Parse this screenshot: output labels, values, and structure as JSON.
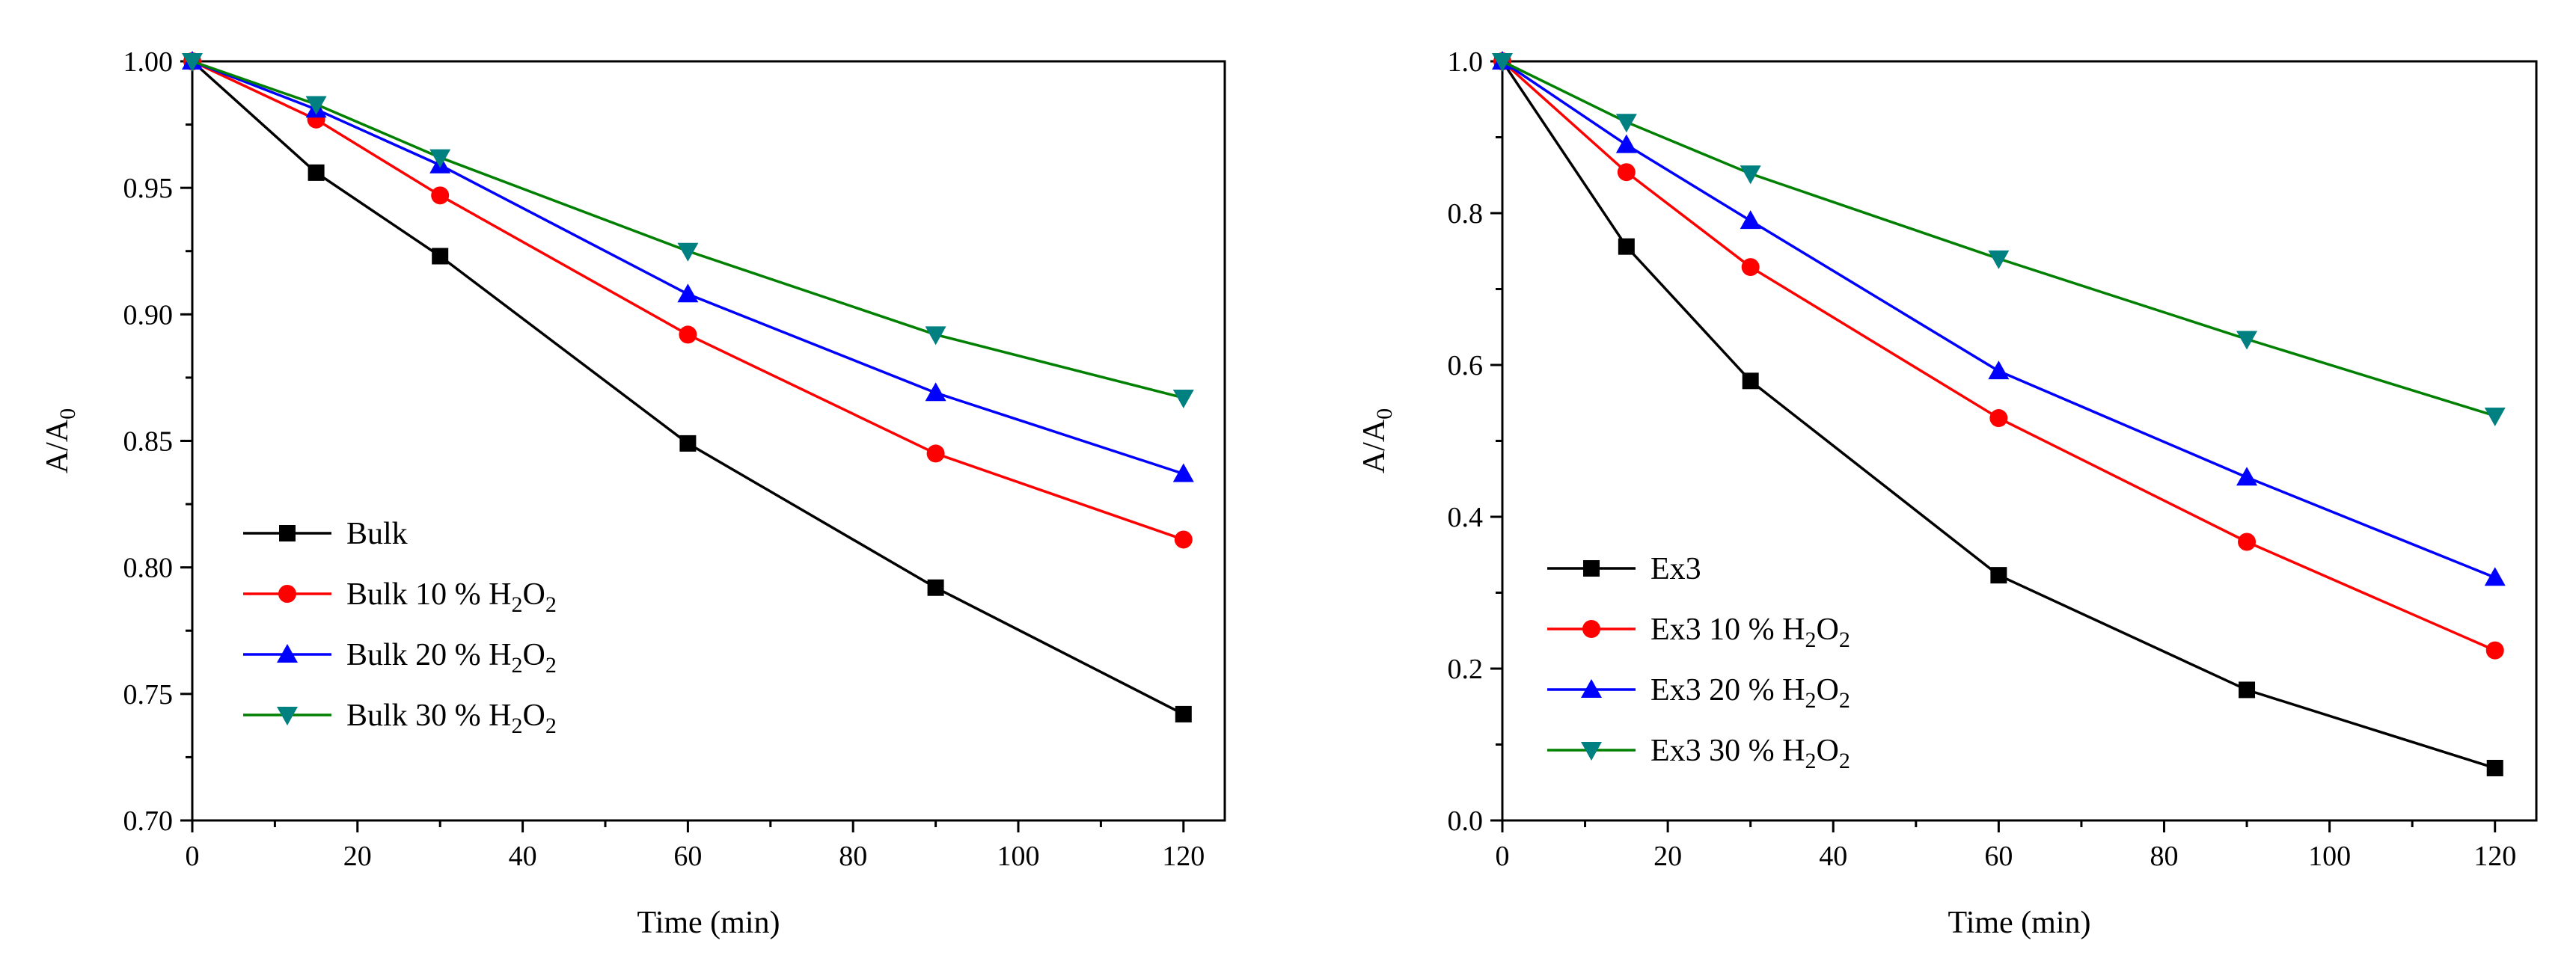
{
  "chart_data": [
    {
      "type": "line",
      "xlabel": "Time (min)",
      "ylabel": {
        "base": "A/A",
        "sub": "0"
      },
      "xlim": [
        0,
        125
      ],
      "ylim": [
        0.7,
        1.0
      ],
      "xticks": [
        "0",
        "20",
        "40",
        "60",
        "80",
        "100",
        "120"
      ],
      "yticks": [
        "0.70",
        "0.75",
        "0.80",
        "0.85",
        "0.90",
        "0.95",
        "1.00"
      ],
      "legend_position": "bottom-left",
      "x": [
        0,
        15,
        30,
        60,
        90,
        120
      ],
      "series": [
        {
          "name": "Bulk",
          "legend": {
            "prefix": "Bulk",
            "suffix": ""
          },
          "color": "#000000",
          "marker": "square",
          "values": [
            1.0,
            0.956,
            0.923,
            0.849,
            0.792,
            0.742
          ]
        },
        {
          "name": "Bulk 10 % H2O2",
          "legend": {
            "prefix": "Bulk 10 % ",
            "suffix": "H2O2"
          },
          "color": "#ff0000",
          "marker": "circle",
          "values": [
            1.0,
            0.977,
            0.947,
            0.892,
            0.845,
            0.811
          ]
        },
        {
          "name": "Bulk 20 % H2O2",
          "legend": {
            "prefix": "Bulk 20 % ",
            "suffix": "H2O2"
          },
          "color": "#0000ff",
          "marker": "triangle-up",
          "values": [
            1.0,
            0.981,
            0.959,
            0.908,
            0.869,
            0.837
          ]
        },
        {
          "name": "Bulk 30 % H2O2",
          "legend": {
            "prefix": "Bulk 30 % ",
            "suffix": "H2O2"
          },
          "color": "#008080",
          "line_color": "#008000",
          "marker": "triangle-down",
          "values": [
            1.0,
            0.983,
            0.962,
            0.925,
            0.892,
            0.867
          ]
        }
      ]
    },
    {
      "type": "line",
      "xlabel": "Time (min)",
      "ylabel": {
        "base": "A/A",
        "sub": "0"
      },
      "xlim": [
        0,
        125
      ],
      "ylim": [
        0.0,
        1.0
      ],
      "xticks": [
        "0",
        "20",
        "40",
        "60",
        "80",
        "100",
        "120"
      ],
      "yticks": [
        "0.0",
        "0.2",
        "0.4",
        "0.6",
        "0.8",
        "1.0"
      ],
      "legend_position": "bottom-left",
      "x": [
        0,
        15,
        30,
        60,
        90,
        120
      ],
      "series": [
        {
          "name": "Ex3",
          "legend": {
            "prefix": "Ex3",
            "suffix": ""
          },
          "color": "#000000",
          "marker": "square",
          "values": [
            1.0,
            0.756,
            0.579,
            0.323,
            0.172,
            0.069
          ]
        },
        {
          "name": "Ex3 10 % H2O2",
          "legend": {
            "prefix": "Ex3 10 % ",
            "suffix": "H2O2"
          },
          "color": "#ff0000",
          "marker": "circle",
          "values": [
            1.0,
            0.854,
            0.729,
            0.53,
            0.367,
            0.224
          ]
        },
        {
          "name": "Ex3 20 % H2O2",
          "legend": {
            "prefix": "Ex3 20 % ",
            "suffix": "H2O2"
          },
          "color": "#0000ff",
          "marker": "triangle-up",
          "values": [
            1.0,
            0.89,
            0.79,
            0.592,
            0.452,
            0.32
          ]
        },
        {
          "name": "Ex3 30 % H2O2",
          "legend": {
            "prefix": "Ex3 30 % ",
            "suffix": "H2O2"
          },
          "color": "#008080",
          "line_color": "#008000",
          "marker": "triangle-down",
          "values": [
            1.0,
            0.92,
            0.852,
            0.74,
            0.634,
            0.533
          ]
        }
      ]
    }
  ]
}
